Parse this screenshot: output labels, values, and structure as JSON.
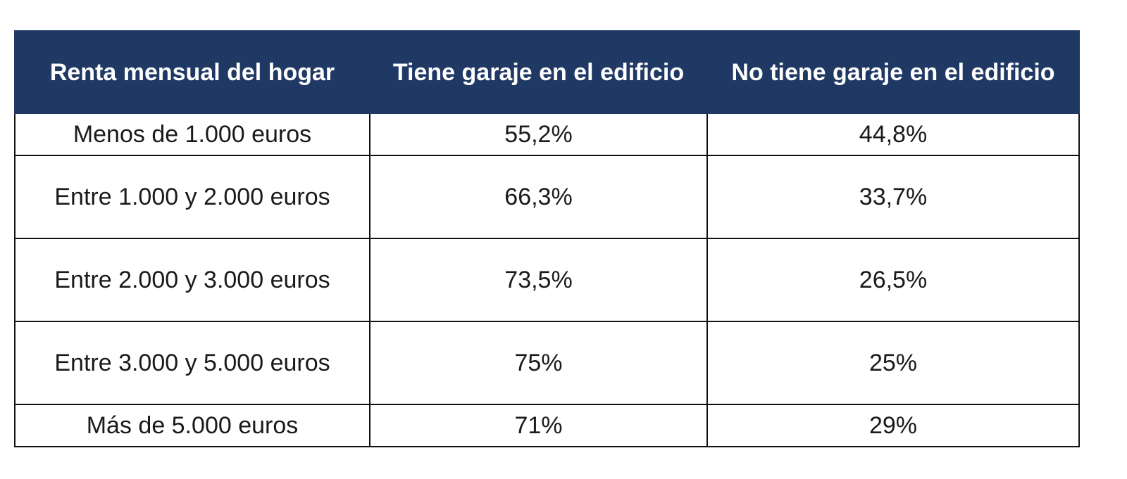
{
  "table": {
    "header": [
      "Renta mensual del hogar",
      "Tiene garaje en el edificio",
      "No tiene garaje en el edificio"
    ],
    "rows": [
      [
        "Menos de 1.000 euros",
        "55,2%",
        "44,8%"
      ],
      [
        "Entre 1.000 y 2.000 euros",
        "66,3%",
        "33,7%"
      ],
      [
        "Entre 2.000 y 3.000 euros",
        "73,5%",
        "26,5%"
      ],
      [
        "Entre 3.000 y 5.000 euros",
        "75%",
        "25%"
      ],
      [
        "Más de 5.000 euros",
        "71%",
        "29%"
      ]
    ]
  }
}
